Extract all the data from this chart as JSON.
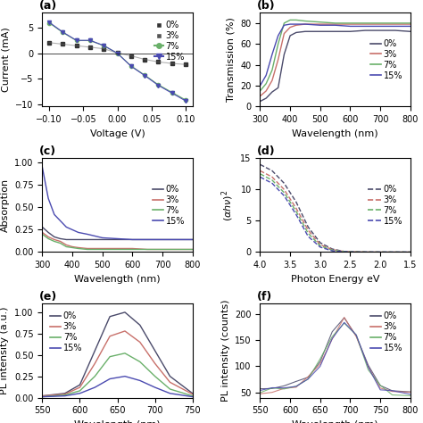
{
  "panel_labels": [
    "(a)",
    "(b)",
    "(c)",
    "(d)",
    "(e)",
    "(f)"
  ],
  "colors": {
    "0pct": "#4a4a6a",
    "3pct": "#c8706a",
    "7pct": "#6ab06a",
    "15pct": "#4a4ab0"
  },
  "iv_voltage": [
    -0.1,
    -0.08,
    -0.06,
    -0.04,
    -0.02,
    0.0,
    0.02,
    0.04,
    0.06,
    0.08,
    0.1
  ],
  "iv_0pct": [
    2.1,
    1.8,
    1.5,
    1.2,
    0.9,
    0.05,
    -0.5,
    -1.2,
    -1.7,
    -2.0,
    -2.2
  ],
  "iv_3pct": [
    2.1,
    1.8,
    1.5,
    1.2,
    0.9,
    0.05,
    -0.5,
    -1.2,
    -1.7,
    -2.0,
    -2.2
  ],
  "iv_7pct": [
    6.0,
    4.1,
    2.5,
    2.5,
    1.5,
    0.0,
    -2.5,
    -4.3,
    -6.2,
    -7.7,
    -9.2
  ],
  "iv_15pct": [
    6.0,
    4.1,
    2.5,
    2.5,
    1.5,
    0.0,
    -2.5,
    -4.3,
    -6.2,
    -7.7,
    -9.2
  ],
  "trans_wl": [
    300,
    320,
    340,
    360,
    380,
    400,
    420,
    450,
    500,
    550,
    600,
    650,
    700,
    750,
    800
  ],
  "trans_0pct": [
    5,
    8,
    14,
    18,
    50,
    68,
    71,
    72,
    72,
    72,
    72,
    73,
    73,
    73,
    72
  ],
  "trans_3pct": [
    10,
    15,
    25,
    45,
    70,
    76,
    78,
    79,
    79,
    79,
    79,
    79,
    79,
    79,
    79
  ],
  "trans_7pct": [
    15,
    22,
    35,
    60,
    80,
    83,
    83,
    82,
    81,
    80,
    80,
    80,
    80,
    80,
    80
  ],
  "trans_15pct": [
    20,
    30,
    50,
    68,
    78,
    79,
    79,
    79,
    78,
    78,
    77,
    77,
    77,
    77,
    77
  ],
  "abs_wl": [
    300,
    320,
    340,
    360,
    380,
    400,
    420,
    450,
    500,
    550,
    600,
    650,
    700,
    750,
    800
  ],
  "abs_0pct": [
    0.28,
    0.22,
    0.17,
    0.15,
    0.14,
    0.14,
    0.14,
    0.14,
    0.14,
    0.14,
    0.14,
    0.14,
    0.14,
    0.14,
    0.14
  ],
  "abs_3pct": [
    0.22,
    0.17,
    0.14,
    0.12,
    0.08,
    0.06,
    0.05,
    0.04,
    0.04,
    0.04,
    0.04,
    0.03,
    0.03,
    0.03,
    0.03
  ],
  "abs_7pct": [
    0.2,
    0.15,
    0.12,
    0.1,
    0.06,
    0.05,
    0.04,
    0.03,
    0.03,
    0.03,
    0.03,
    0.03,
    0.03,
    0.03,
    0.03
  ],
  "abs_15pct": [
    0.95,
    0.6,
    0.42,
    0.35,
    0.28,
    0.25,
    0.22,
    0.2,
    0.16,
    0.15,
    0.14,
    0.14,
    0.14,
    0.14,
    0.14
  ],
  "tauc_energy": [
    4.0,
    3.8,
    3.6,
    3.4,
    3.2,
    3.0,
    2.8,
    2.6,
    2.4,
    2.2,
    2.0,
    1.8,
    1.6,
    1.5
  ],
  "tauc_0pct": [
    14,
    13,
    11,
    8,
    4,
    1.5,
    0.5,
    0.1,
    0.05,
    0.02,
    0.01,
    0.0,
    0.0,
    0.0
  ],
  "tauc_3pct": [
    13,
    12,
    10,
    7,
    3.5,
    1.2,
    0.4,
    0.1,
    0.04,
    0.01,
    0.0,
    0.0,
    0.0,
    0.0
  ],
  "tauc_7pct": [
    12.5,
    11.5,
    9.5,
    6.5,
    3,
    1.0,
    0.3,
    0.08,
    0.02,
    0.0,
    0.0,
    0.0,
    0.0,
    0.0
  ],
  "tauc_15pct": [
    12,
    11,
    9,
    6,
    2.5,
    0.8,
    0.2,
    0.05,
    0.0,
    0.0,
    0.0,
    0.0,
    0.0,
    0.0
  ],
  "pl_e_wl": [
    550,
    580,
    600,
    620,
    640,
    660,
    680,
    700,
    720,
    750
  ],
  "pl_e_0pct": [
    0.02,
    0.05,
    0.15,
    0.55,
    0.95,
    1.0,
    0.85,
    0.55,
    0.25,
    0.05
  ],
  "pl_e_3pct": [
    0.02,
    0.04,
    0.12,
    0.4,
    0.72,
    0.78,
    0.65,
    0.4,
    0.18,
    0.04
  ],
  "pl_e_7pct": [
    0.01,
    0.03,
    0.08,
    0.25,
    0.48,
    0.52,
    0.42,
    0.25,
    0.1,
    0.02
  ],
  "pl_e_15pct": [
    0.01,
    0.02,
    0.05,
    0.12,
    0.22,
    0.25,
    0.2,
    0.12,
    0.05,
    0.01
  ],
  "pl_f_wl": [
    550,
    570,
    590,
    610,
    630,
    650,
    670,
    690,
    710,
    730,
    750,
    770,
    800
  ],
  "pl_f_0pct": [
    55,
    58,
    60,
    65,
    80,
    110,
    160,
    190,
    160,
    100,
    65,
    55,
    50
  ],
  "pl_f_3pct": [
    55,
    57,
    60,
    64,
    79,
    108,
    158,
    188,
    158,
    99,
    64,
    54,
    50
  ],
  "pl_f_7pct": [
    54,
    57,
    59,
    63,
    78,
    107,
    157,
    187,
    157,
    98,
    63,
    53,
    49
  ],
  "pl_f_15pct": [
    53,
    56,
    58,
    62,
    77,
    106,
    156,
    186,
    156,
    97,
    62,
    52,
    48
  ],
  "label_fontsize": 8,
  "tick_fontsize": 7,
  "legend_fontsize": 7
}
